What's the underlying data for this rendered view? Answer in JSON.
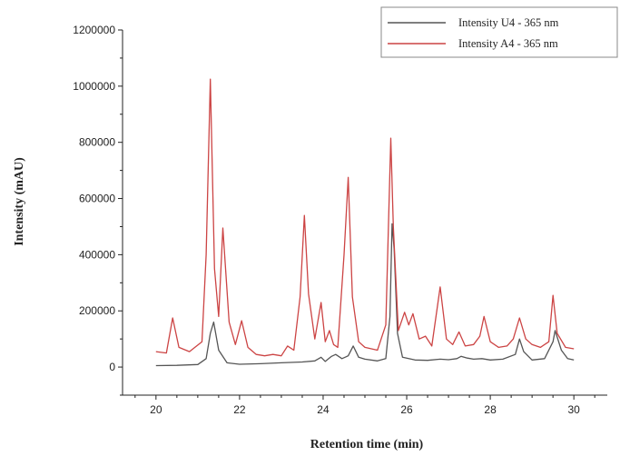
{
  "chart_data": {
    "type": "line",
    "title": "",
    "xlabel": "Retention time (min)",
    "ylabel": "Intensity (mAU)",
    "xlim": [
      19.2,
      30.8
    ],
    "ylim": [
      -100000,
      1200000
    ],
    "x_ticks": [
      20,
      22,
      24,
      26,
      28,
      30
    ],
    "x_tick_labels": [
      "20",
      "22",
      "24",
      "26",
      "28",
      "30"
    ],
    "y_ticks": [
      0,
      200000,
      400000,
      600000,
      800000,
      1000000,
      1200000
    ],
    "y_tick_labels": [
      "0",
      "200000",
      "400000",
      "600000",
      "800000",
      "1000000",
      "1200000"
    ],
    "grid": false,
    "legend_position": "top-right",
    "series": [
      {
        "name": "Intensity U4 - 365 nm",
        "color": "#555555",
        "x": [
          20.0,
          20.5,
          21.0,
          21.2,
          21.3,
          21.38,
          21.5,
          21.7,
          22.0,
          22.5,
          23.0,
          23.5,
          23.8,
          23.95,
          24.05,
          24.2,
          24.3,
          24.45,
          24.6,
          24.72,
          24.85,
          25.0,
          25.3,
          25.5,
          25.6,
          25.65,
          25.7,
          25.78,
          25.9,
          26.2,
          26.5,
          26.8,
          27.0,
          27.2,
          27.3,
          27.45,
          27.6,
          27.8,
          28.0,
          28.3,
          28.6,
          28.7,
          28.8,
          29.0,
          29.3,
          29.5,
          29.55,
          29.7,
          29.85,
          30.0
        ],
        "y": [
          5000,
          6000,
          9000,
          30000,
          120000,
          160000,
          60000,
          15000,
          10000,
          12000,
          15000,
          18000,
          22000,
          35000,
          20000,
          38000,
          45000,
          30000,
          40000,
          75000,
          35000,
          28000,
          22000,
          30000,
          180000,
          510000,
          420000,
          120000,
          35000,
          25000,
          24000,
          28000,
          26000,
          30000,
          38000,
          32000,
          28000,
          30000,
          25000,
          28000,
          45000,
          100000,
          55000,
          25000,
          30000,
          90000,
          130000,
          60000,
          30000,
          25000
        ]
      },
      {
        "name": "Intensity A4 - 365 nm",
        "color": "#cc4444",
        "x": [
          20.0,
          20.25,
          20.4,
          20.55,
          20.8,
          21.1,
          21.2,
          21.3,
          21.4,
          21.5,
          21.6,
          21.75,
          21.9,
          22.05,
          22.2,
          22.4,
          22.6,
          22.8,
          23.0,
          23.15,
          23.3,
          23.45,
          23.55,
          23.65,
          23.8,
          23.95,
          24.05,
          24.15,
          24.25,
          24.35,
          24.5,
          24.6,
          24.7,
          24.85,
          25.0,
          25.3,
          25.5,
          25.62,
          25.68,
          25.8,
          25.95,
          26.05,
          26.15,
          26.3,
          26.45,
          26.6,
          26.8,
          26.95,
          27.1,
          27.25,
          27.4,
          27.6,
          27.75,
          27.85,
          28.0,
          28.2,
          28.4,
          28.55,
          28.7,
          28.85,
          29.0,
          29.2,
          29.4,
          29.5,
          29.6,
          29.8,
          30.0
        ],
        "y": [
          55000,
          50000,
          175000,
          70000,
          55000,
          90000,
          400000,
          1025000,
          350000,
          180000,
          495000,
          160000,
          80000,
          165000,
          70000,
          45000,
          40000,
          45000,
          40000,
          75000,
          60000,
          250000,
          540000,
          260000,
          100000,
          230000,
          90000,
          130000,
          80000,
          70000,
          400000,
          675000,
          250000,
          90000,
          70000,
          60000,
          150000,
          815000,
          500000,
          130000,
          195000,
          150000,
          190000,
          100000,
          110000,
          75000,
          285000,
          100000,
          80000,
          125000,
          75000,
          80000,
          110000,
          180000,
          90000,
          70000,
          75000,
          100000,
          175000,
          100000,
          80000,
          70000,
          90000,
          255000,
          120000,
          70000,
          65000
        ]
      }
    ]
  }
}
